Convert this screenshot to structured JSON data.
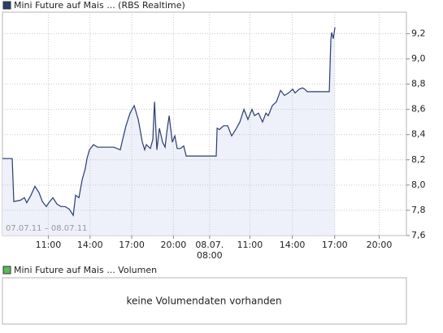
{
  "chart_data": {
    "type": "line",
    "series": [
      {
        "name": "Mini Future auf Mais ... (RBS Realtime)",
        "color": "#2a3d6e",
        "fill": "#eef0fa",
        "x": [
          7.7,
          8.4,
          8.52,
          8.99,
          9.28,
          9.45,
          9.75,
          10.04,
          10.33,
          10.57,
          10.86,
          11.03,
          11.33,
          11.62,
          11.91,
          12.2,
          12.5,
          12.79,
          12.96,
          13.2,
          13.43,
          13.66,
          13.78,
          13.96,
          14.25,
          14.54,
          14.83,
          15.13,
          15.71,
          16.18,
          16.3,
          16.59,
          16.88,
          17.18,
          17.47,
          17.76,
          17.93,
          18.05,
          18.34,
          18.52,
          18.64,
          18.81,
          18.99,
          19.22,
          19.4,
          19.51,
          19.69,
          19.92,
          20.1,
          20.27,
          20.51,
          20.74,
          20.92,
          21.27,
          23.08,
          23.14,
          23.31,
          23.61,
          23.9,
          24.19,
          24.48,
          24.78,
          25.07,
          25.36,
          25.65,
          25.83,
          26.12,
          26.41,
          26.65,
          26.82,
          27.12,
          27.41,
          27.7,
          27.99,
          28.29,
          28.58,
          28.75,
          29.05,
          29.28,
          29.45,
          29.63,
          31.21,
          31.32,
          31.38,
          31.5,
          31.62
        ],
        "values": [
          8.21,
          8.21,
          7.87,
          7.88,
          7.9,
          7.86,
          7.92,
          7.99,
          7.94,
          7.87,
          7.83,
          7.86,
          7.9,
          7.85,
          7.83,
          7.83,
          7.81,
          7.76,
          7.92,
          7.9,
          8.04,
          8.13,
          8.21,
          8.28,
          8.32,
          8.3,
          8.3,
          8.3,
          8.3,
          8.28,
          8.34,
          8.47,
          8.57,
          8.63,
          8.52,
          8.34,
          8.28,
          8.32,
          8.29,
          8.36,
          8.66,
          8.28,
          8.45,
          8.34,
          8.3,
          8.41,
          8.55,
          8.34,
          8.39,
          8.29,
          8.29,
          8.31,
          8.23,
          8.23,
          8.23,
          8.45,
          8.44,
          8.47,
          8.47,
          8.39,
          8.44,
          8.5,
          8.6,
          8.52,
          8.6,
          8.55,
          8.57,
          8.5,
          8.57,
          8.55,
          8.63,
          8.66,
          8.75,
          8.71,
          8.73,
          8.76,
          8.73,
          8.76,
          8.77,
          8.76,
          8.74,
          8.74,
          9.15,
          9.21,
          9.16,
          9.25
        ]
      }
    ],
    "xlim": [
      7.7,
      36.76
    ],
    "xticks": [
      {
        "value": 11,
        "label": "11:00"
      },
      {
        "value": 14,
        "label": "14:00"
      },
      {
        "value": 17,
        "label": "17:00"
      },
      {
        "value": 20,
        "label": "20:00"
      },
      {
        "value": 22.6,
        "label": "08.07.\n08:00"
      },
      {
        "value": 25.5,
        "label": "11:00"
      },
      {
        "value": 28.55,
        "label": "14:00"
      },
      {
        "value": 31.6,
        "label": "17:00"
      },
      {
        "value": 34.8,
        "label": "20:00"
      }
    ],
    "ylim": [
      7.6,
      9.37
    ],
    "yticks": [
      {
        "value": 7.6,
        "label": "7,6"
      },
      {
        "value": 7.8,
        "label": "7,8"
      },
      {
        "value": 8.0,
        "label": "8,0"
      },
      {
        "value": 8.2,
        "label": "8,2"
      },
      {
        "value": 8.4,
        "label": "8,4"
      },
      {
        "value": 8.6,
        "label": "8,6"
      },
      {
        "value": 8.8,
        "label": "8,8"
      },
      {
        "value": 9.0,
        "label": "9,0"
      },
      {
        "value": 9.2,
        "label": "9,2"
      }
    ],
    "grid": true,
    "annotation": "07.07.11 – 08.07.11"
  },
  "volume_panel": {
    "legend": "Mini Future auf Mais ... Volumen",
    "color": "#5cb85c",
    "message": "keine Volumendaten vorhanden"
  }
}
